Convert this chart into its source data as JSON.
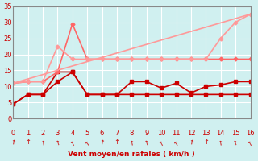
{
  "xlabel": "Vent moyen/en rafales ( km/h )",
  "x": [
    0,
    1,
    2,
    3,
    4,
    5,
    6,
    7,
    8,
    9,
    10,
    11,
    12,
    13,
    14,
    15,
    16
  ],
  "line1": [
    4.5,
    7.5,
    7.5,
    14.5,
    14.5,
    7.5,
    7.5,
    7.5,
    7.5,
    7.5,
    7.5,
    7.5,
    7.5,
    7.5,
    7.5,
    7.5,
    7.5
  ],
  "line2": [
    4.5,
    7.5,
    7.5,
    11.5,
    14.5,
    7.5,
    7.5,
    7.5,
    11.5,
    11.5,
    9.5,
    11.0,
    8.0,
    10.0,
    10.5,
    11.5,
    11.5
  ],
  "line3": [
    11.0,
    11.5,
    11.5,
    14.5,
    29.5,
    18.5,
    18.5,
    18.5,
    18.5,
    18.5,
    18.5,
    18.5,
    18.5,
    18.5,
    18.5,
    18.5,
    18.5
  ],
  "line4": [
    11.0,
    11.5,
    11.5,
    22.5,
    18.5,
    18.5,
    18.5,
    18.5,
    18.5,
    18.5,
    18.5,
    18.5,
    18.5,
    18.5,
    25.0,
    30.0,
    32.5
  ],
  "line5_x": [
    0,
    16
  ],
  "line5_y": [
    11.0,
    32.5
  ],
  "color_dark_red": "#cc0000",
  "color_light_pink": "#ff9999",
  "color_medium_pink": "#ff6666",
  "background": "#d0f0f0",
  "grid_color": "#ffffff",
  "ylim": [
    0,
    35
  ],
  "xlim": [
    0,
    16
  ],
  "yticks": [
    0,
    5,
    10,
    15,
    20,
    25,
    30,
    35
  ],
  "xticks": [
    0,
    1,
    2,
    3,
    4,
    5,
    6,
    7,
    8,
    9,
    10,
    11,
    12,
    13,
    14,
    15,
    16
  ]
}
